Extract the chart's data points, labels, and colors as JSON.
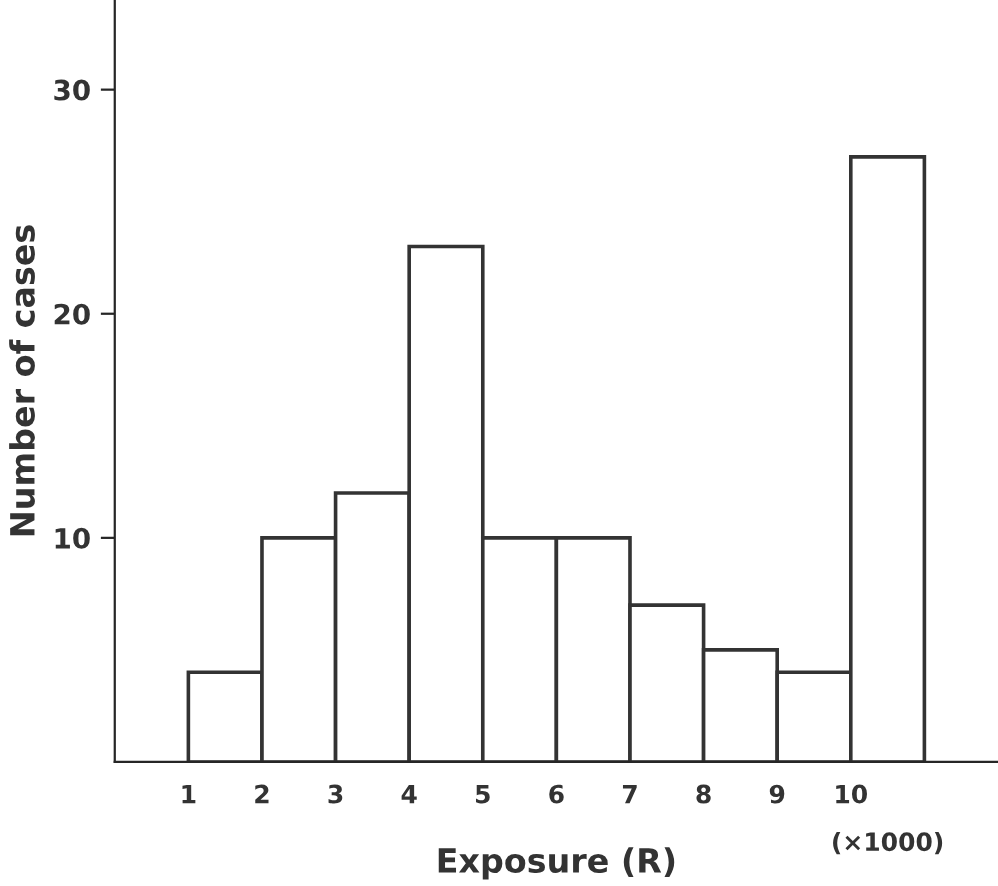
{
  "chart_data": {
    "type": "histogram",
    "xlabel": "Exposure (R)",
    "ylabel": "Number of cases",
    "bins": [
      1,
      2,
      3,
      4,
      5,
      6,
      7,
      8,
      9,
      10,
      11
    ],
    "values": [
      4,
      10,
      12,
      23,
      10,
      10,
      7,
      5,
      4,
      27
    ],
    "color": "#ffffff",
    "xlim": [
      0,
      12
    ],
    "xticks": [
      1,
      2,
      3,
      4,
      5,
      6,
      7,
      8,
      9,
      10
    ],
    "ylim": [
      0,
      34
    ],
    "yticks": [
      10,
      20,
      30
    ],
    "annotations": [
      "(×1000)"
    ],
    "grid": false
  }
}
